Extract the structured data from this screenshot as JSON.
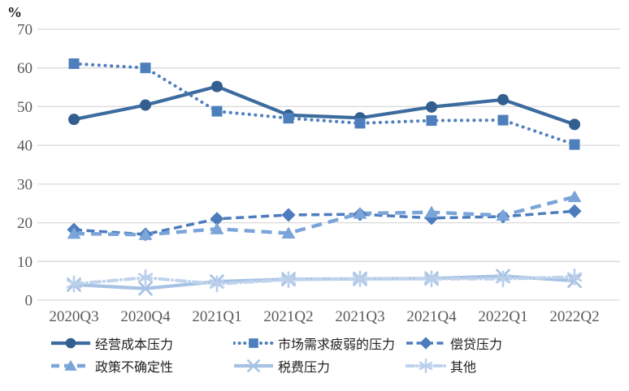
{
  "chart": {
    "percent_label": "%",
    "axis_text_color": "#595959",
    "grid_color": "#d9d9d9",
    "legend_text_color": "#1f1f1f",
    "yticks": [
      0,
      10,
      20,
      30,
      40,
      50,
      60,
      70
    ]
  },
  "chart_data": {
    "type": "line",
    "title": "",
    "xlabel": "",
    "ylabel": "%",
    "ylim": [
      0,
      70
    ],
    "grid": "horizontal",
    "legend_position": "bottom",
    "categories": [
      "2020Q3",
      "2020Q4",
      "2021Q1",
      "2021Q2",
      "2021Q3",
      "2021Q4",
      "2022Q1",
      "2022Q2"
    ],
    "series": [
      {
        "name": "经营成本压力",
        "marker": "circle",
        "marker_icon": "circle-marker-icon",
        "line_style": "solid",
        "color": "#3c6b9e",
        "marker_color": "#335f90",
        "values": [
          46.7,
          50.4,
          55.2,
          47.8,
          47.1,
          49.9,
          51.8,
          45.4
        ]
      },
      {
        "name": "市场需求疲弱的压力",
        "marker": "square",
        "marker_icon": "square-marker-icon",
        "line_style": "dotted",
        "color": "#4e7fbd",
        "marker_color": "#4e7fbd",
        "values": [
          61.1,
          60.0,
          48.8,
          47.0,
          45.7,
          46.4,
          46.5,
          40.2
        ]
      },
      {
        "name": "偿贷压力",
        "marker": "diamond",
        "marker_icon": "diamond-marker-icon",
        "line_style": "dashed",
        "color": "#4c7cbc",
        "marker_color": "#4c7cbc",
        "values": [
          18.2,
          17.0,
          21.0,
          22.0,
          22.2,
          21.2,
          21.6,
          23.0
        ]
      },
      {
        "name": "政策不确定性",
        "marker": "triangle",
        "marker_icon": "triangle-marker-icon",
        "line_style": "long-dash",
        "color": "#7ba4d9",
        "marker_color": "#7ba4d9",
        "values": [
          17.2,
          16.9,
          18.4,
          17.3,
          22.4,
          22.7,
          21.9,
          26.7
        ]
      },
      {
        "name": "税费压力",
        "marker": "x",
        "marker_icon": "x-marker-icon",
        "line_style": "solid",
        "color": "#a6c2e4",
        "marker_color": "#a6c2e4",
        "values": [
          4.0,
          3.0,
          4.8,
          5.4,
          5.5,
          5.6,
          6.2,
          5.0
        ]
      },
      {
        "name": "其他",
        "marker": "asterisk",
        "marker_icon": "asterisk-marker-icon",
        "line_style": "dash-dot",
        "color": "#bfd3ec",
        "marker_color": "#b9cfea",
        "values": [
          4.2,
          5.8,
          4.2,
          5.3,
          5.5,
          5.5,
          5.5,
          6.0
        ]
      }
    ]
  }
}
